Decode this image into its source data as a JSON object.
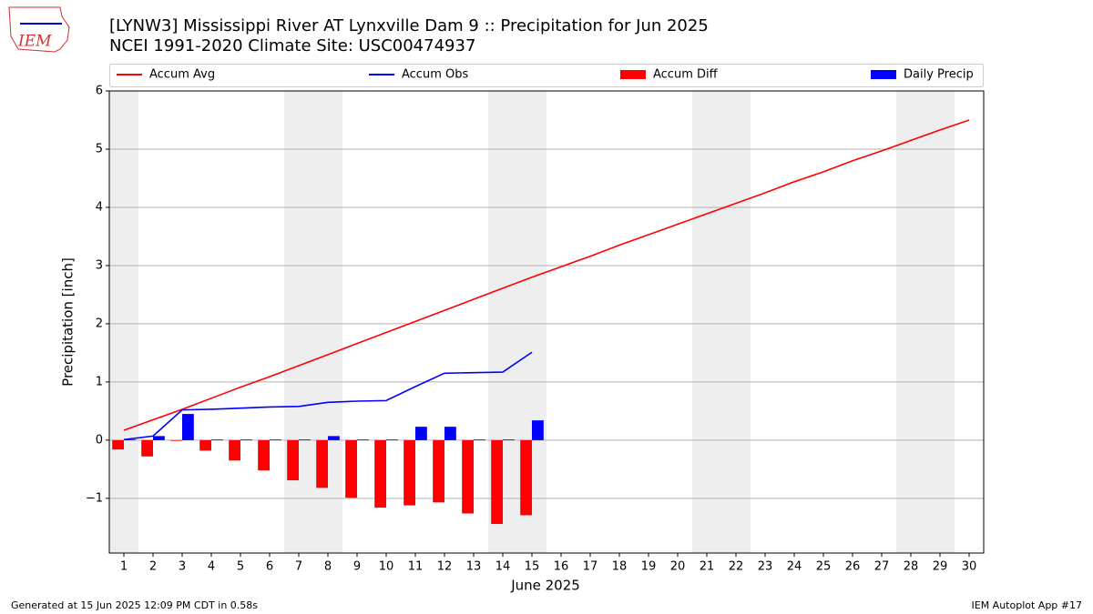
{
  "chart_data": {
    "type": "combo",
    "title": "[LYNW3] Mississippi River  AT Lynxville Dam 9 :: Precipitation for Jun 2025",
    "subtitle": "NCEI 1991-2020 Climate Site: USC00474937",
    "xlabel": "June 2025",
    "ylabel": "Precipitation [inch]",
    "logo_text": "IEM",
    "footer_left": "Generated at 15 Jun 2025 12:09 PM CDT in 0.58s",
    "footer_right": "IEM Autoplot App #17",
    "x": [
      1,
      2,
      3,
      4,
      5,
      6,
      7,
      8,
      9,
      10,
      11,
      12,
      13,
      14,
      15,
      16,
      17,
      18,
      19,
      20,
      21,
      22,
      23,
      24,
      25,
      26,
      27,
      28,
      29,
      30
    ],
    "xticks": [
      1,
      2,
      3,
      4,
      5,
      6,
      7,
      8,
      9,
      10,
      11,
      12,
      13,
      14,
      15,
      16,
      17,
      18,
      19,
      20,
      21,
      22,
      23,
      24,
      25,
      26,
      27,
      28,
      29,
      30
    ],
    "xlim": [
      0.5,
      30.5
    ],
    "ylim": [
      -1.94,
      6
    ],
    "yticks": [
      {
        "value": -1,
        "label": "−1"
      },
      0,
      1,
      2,
      3,
      4,
      5,
      6
    ],
    "grid": true,
    "legend": "top",
    "shaded_days": [
      1,
      7,
      8,
      14,
      15,
      21,
      22,
      28,
      29
    ],
    "shade_color": "#eeeeee",
    "series": [
      {
        "name": "Accum Avg",
        "type": "line",
        "color": "#ff0000",
        "values": [
          0.17,
          0.35,
          0.53,
          0.72,
          0.91,
          1.09,
          1.28,
          1.47,
          1.66,
          1.85,
          2.04,
          2.23,
          2.42,
          2.61,
          2.8,
          2.98,
          3.16,
          3.35,
          3.53,
          3.71,
          3.89,
          4.07,
          4.25,
          4.44,
          4.61,
          4.8,
          4.97,
          5.15,
          5.33,
          5.5
        ]
      },
      {
        "name": "Accum Obs",
        "type": "line",
        "color": "#0000ff",
        "values": [
          0.01,
          0.07,
          0.52,
          0.53,
          0.55,
          0.57,
          0.58,
          0.65,
          0.67,
          0.68,
          0.92,
          1.15,
          1.16,
          1.17,
          1.51,
          null,
          null,
          null,
          null,
          null,
          null,
          null,
          null,
          null,
          null,
          null,
          null,
          null,
          null,
          null
        ]
      },
      {
        "name": "Accum Diff",
        "type": "bar",
        "color": "#ff0000",
        "offset": -0.4,
        "width": 0.4,
        "values": [
          -0.16,
          -0.28,
          -0.01,
          -0.18,
          -0.35,
          -0.52,
          -0.69,
          -0.82,
          -0.99,
          -1.16,
          -1.12,
          -1.07,
          -1.26,
          -1.44,
          -1.29,
          null,
          null,
          null,
          null,
          null,
          null,
          null,
          null,
          null,
          null,
          null,
          null,
          null,
          null,
          null
        ]
      },
      {
        "name": "Daily Precip",
        "type": "bar",
        "color": "#0000ff",
        "offset": 0,
        "width": 0.4,
        "values": [
          0.01,
          0.07,
          0.45,
          0.01,
          0.01,
          0.01,
          0.01,
          0.07,
          0.01,
          0.01,
          0.23,
          0.23,
          0.01,
          0.01,
          0.34,
          null,
          null,
          null,
          null,
          null,
          null,
          null,
          null,
          null,
          null,
          null,
          null,
          null,
          null,
          null
        ]
      }
    ]
  }
}
